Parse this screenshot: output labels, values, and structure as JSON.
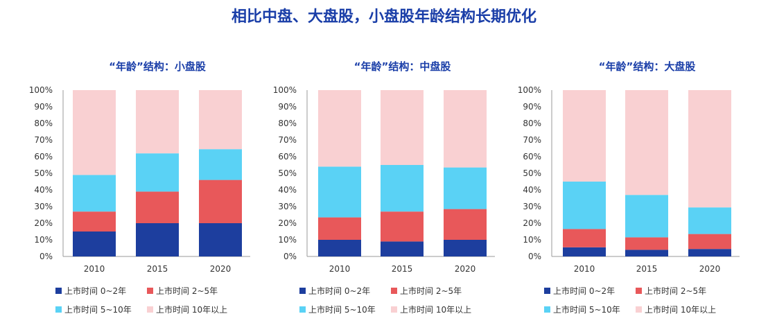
{
  "title": "相比中盘、大盘股，小盘股年龄结构长期优化",
  "colors": {
    "s0": "#1d3e9e",
    "s1": "#e8585a",
    "s2": "#5ad2f5",
    "s3": "#f9d0d2",
    "title": "#1a3ea8"
  },
  "chart_data": [
    {
      "type": "bar",
      "stacked": true,
      "title": "“年龄”结构：小盘股",
      "categories": [
        "2010",
        "2015",
        "2020"
      ],
      "yticks": [
        "0%",
        "10%",
        "20%",
        "30%",
        "40%",
        "50%",
        "60%",
        "70%",
        "80%",
        "90%",
        "100%"
      ],
      "ylim": [
        0,
        100
      ],
      "series": [
        {
          "name": "上市时间 0~2年",
          "values": [
            15,
            20,
            20
          ]
        },
        {
          "name": "上市时间 2~5年",
          "values": [
            12,
            19,
            26
          ]
        },
        {
          "name": "上市时间 5~10年",
          "values": [
            22,
            23,
            18.5
          ]
        },
        {
          "name": "上市时间 10年以上",
          "values": [
            51,
            38,
            35.5
          ]
        }
      ],
      "legend": "bottom"
    },
    {
      "type": "bar",
      "stacked": true,
      "title": "“年龄”结构：中盘股",
      "categories": [
        "2010",
        "2015",
        "2020"
      ],
      "yticks": [
        "0%",
        "10%",
        "20%",
        "30%",
        "40%",
        "50%",
        "60%",
        "70%",
        "80%",
        "90%",
        "100%"
      ],
      "ylim": [
        0,
        100
      ],
      "series": [
        {
          "name": "上市时间 0~2年",
          "values": [
            10,
            9,
            10
          ]
        },
        {
          "name": "上市时间 2~5年",
          "values": [
            13.5,
            18,
            18.5
          ]
        },
        {
          "name": "上市时间 5~10年",
          "values": [
            30.5,
            28,
            25
          ]
        },
        {
          "name": "上市时间 10年以上",
          "values": [
            46,
            45,
            46.5
          ]
        }
      ],
      "legend": "bottom"
    },
    {
      "type": "bar",
      "stacked": true,
      "title": "“年龄”结构：大盘股",
      "categories": [
        "2010",
        "2015",
        "2020"
      ],
      "yticks": [
        "0%",
        "10%",
        "20%",
        "30%",
        "40%",
        "50%",
        "60%",
        "70%",
        "80%",
        "90%",
        "100%"
      ],
      "ylim": [
        0,
        100
      ],
      "series": [
        {
          "name": "上市时间 0~2年",
          "values": [
            5.5,
            4,
            4.5
          ]
        },
        {
          "name": "上市时间 2~5年",
          "values": [
            11,
            7.5,
            9
          ]
        },
        {
          "name": "上市时间 5~10年",
          "values": [
            28.5,
            25.5,
            16
          ]
        },
        {
          "name": "上市时间 10年以上",
          "values": [
            55,
            63,
            70.5
          ]
        }
      ],
      "legend": "bottom"
    }
  ]
}
